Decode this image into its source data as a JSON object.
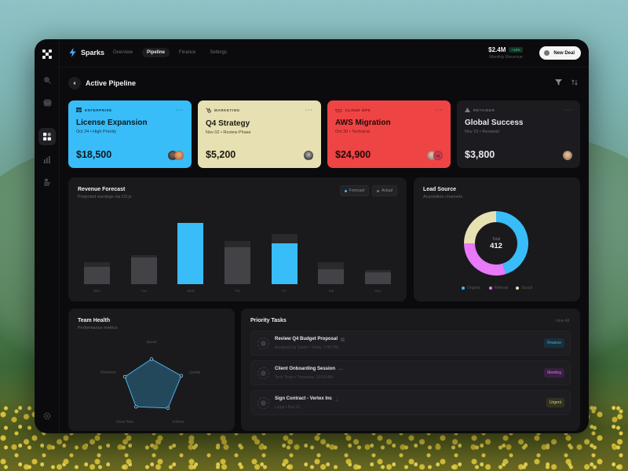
{
  "app": {
    "brand": "Sparks",
    "nav": [
      {
        "label": "Overview",
        "active": false
      },
      {
        "label": "Pipeline",
        "active": true
      },
      {
        "label": "Finance",
        "active": false
      },
      {
        "label": "Settings",
        "active": false
      }
    ],
    "revenue": {
      "value": "$2.4M",
      "change": "+18%",
      "label": "Monthly Revenue"
    },
    "new_deal_label": "New Deal"
  },
  "sidebar": {
    "items": [
      {
        "icon": "search-icon"
      },
      {
        "icon": "inbox-icon"
      },
      {
        "icon": "dashboard-icon",
        "active": true
      },
      {
        "icon": "chart-icon"
      },
      {
        "icon": "users-icon"
      }
    ],
    "bottom": {
      "icon": "gear-icon"
    }
  },
  "page": {
    "title": "Active Pipeline",
    "actions": [
      "filter-icon",
      "sort-icon"
    ]
  },
  "deals": [
    {
      "category": "ENTERPRISE",
      "title": "License Expansion",
      "subtitle": "Oct 24 • High Priority",
      "amount": "$18,500",
      "color": "#38bdf8"
    },
    {
      "category": "MARKETING",
      "title": "Q4 Strategy",
      "subtitle": "Nov 02 • Review Phase",
      "amount": "$5,200",
      "color": "#e6e0b3"
    },
    {
      "category": "CLOUD OPS",
      "title": "AWS Migration",
      "subtitle": "Oct 30 • Technical",
      "amount": "$24,900",
      "color": "#ef4444",
      "extra_avatars": "+2"
    },
    {
      "category": "RETAINER",
      "title": "Global Success",
      "subtitle": "Nov 15 • Renewal",
      "amount": "$3,800",
      "color": "#1c1c20"
    }
  ],
  "revenue_forecast": {
    "title": "Revenue Forecast",
    "subtitle": "Projected earnings via D3.js",
    "legend": [
      {
        "label": "Forecast",
        "color": "#38bdf8"
      },
      {
        "label": "Actual",
        "color": "#6e6e76"
      }
    ]
  },
  "lead_source": {
    "title": "Lead Source",
    "subtitle": "Acquisition channels",
    "total_label": "Total",
    "total": "412",
    "legend": [
      {
        "label": "Organic",
        "color": "#38bdf8"
      },
      {
        "label": "Referral",
        "color": "#e879f9"
      },
      {
        "label": "Social",
        "color": "#e6e0b3"
      }
    ]
  },
  "team_health": {
    "title": "Team Health",
    "subtitle": "Performance metrics",
    "axes": [
      "Speed",
      "Quality",
      "Volume",
      "Close Rate",
      "Retention"
    ]
  },
  "priority_tasks": {
    "title": "Priority Tasks",
    "view_all": "View All",
    "items": [
      {
        "title": "Review Q4 Budget Proposal",
        "subtitle": "Assigned by Sarah • Today, 2:00 PM",
        "tag": "Finance",
        "tag_class": "tag-finance"
      },
      {
        "title": "Client Onboarding Session",
        "subtitle": "Tech Team • Tomorrow, 10:00 AM",
        "tag": "Meeting",
        "tag_class": "tag-meeting"
      },
      {
        "title": "Sign Contract - Vertex Inc",
        "subtitle": "Legal • Nov 01",
        "tag": "Urgent",
        "tag_class": "tag-urgent"
      }
    ]
  },
  "chart_data": [
    {
      "type": "bar",
      "title": "Revenue Forecast",
      "subtitle": "Projected earnings via D3.js",
      "categories": [
        "Mon",
        "Tue",
        "Wed",
        "Thu",
        "Fri",
        "Sat",
        "Sun"
      ],
      "series": [
        {
          "name": "Forecast",
          "values": [
            30,
            40,
            85,
            60,
            70,
            30,
            20
          ]
        },
        {
          "name": "Actual",
          "values": [
            24,
            37,
            85,
            51,
            57,
            21,
            16
          ]
        }
      ],
      "highlighted": [
        "Wed",
        "Fri"
      ],
      "ylim": [
        0,
        100
      ],
      "grid": false,
      "legend_position": "top-right"
    },
    {
      "type": "pie",
      "title": "Lead Source",
      "subtitle": "Acquisition channels",
      "categories": [
        "Organic",
        "Referral",
        "Social"
      ],
      "values": [
        45,
        30,
        25
      ],
      "center_label": "Total 412",
      "legend_position": "bottom"
    },
    {
      "type": "radar",
      "title": "Team Health",
      "subtitle": "Performance metrics",
      "categories": [
        "Speed",
        "Quality",
        "Volume",
        "Close Rate",
        "Retention"
      ],
      "values": [
        80,
        95,
        85,
        80,
        85
      ],
      "ylim": [
        0,
        100
      ]
    }
  ]
}
